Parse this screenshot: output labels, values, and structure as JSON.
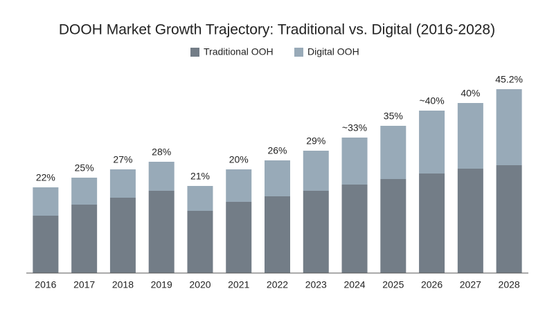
{
  "chart_data": {
    "type": "stacked-bar",
    "title": "DOOH Market Growth Trajectory: Traditional vs. Digital (2016-2028)",
    "categories": [
      "2016",
      "2017",
      "2018",
      "2019",
      "2020",
      "2021",
      "2022",
      "2023",
      "2024",
      "2025",
      "2026",
      "2027",
      "2028"
    ],
    "series": [
      {
        "name": "Traditional OOH",
        "color": "#737d87",
        "values": [
          83,
          99,
          109,
          119,
          90,
          103,
          111,
          119,
          128,
          136,
          144,
          151,
          156
        ]
      },
      {
        "name": "Digital OOH",
        "color": "#98aab8",
        "values": [
          41,
          39,
          41,
          42,
          36,
          47,
          52,
          58,
          68,
          77,
          91,
          95,
          110
        ]
      }
    ],
    "labels": [
      "22%",
      "25%",
      "27%",
      "28%",
      "21%",
      "20%",
      "26%",
      "29%",
      "~33%",
      "35%",
      "~40%",
      "40%",
      "45.2%"
    ],
    "ylim": [
      0,
      266
    ]
  }
}
